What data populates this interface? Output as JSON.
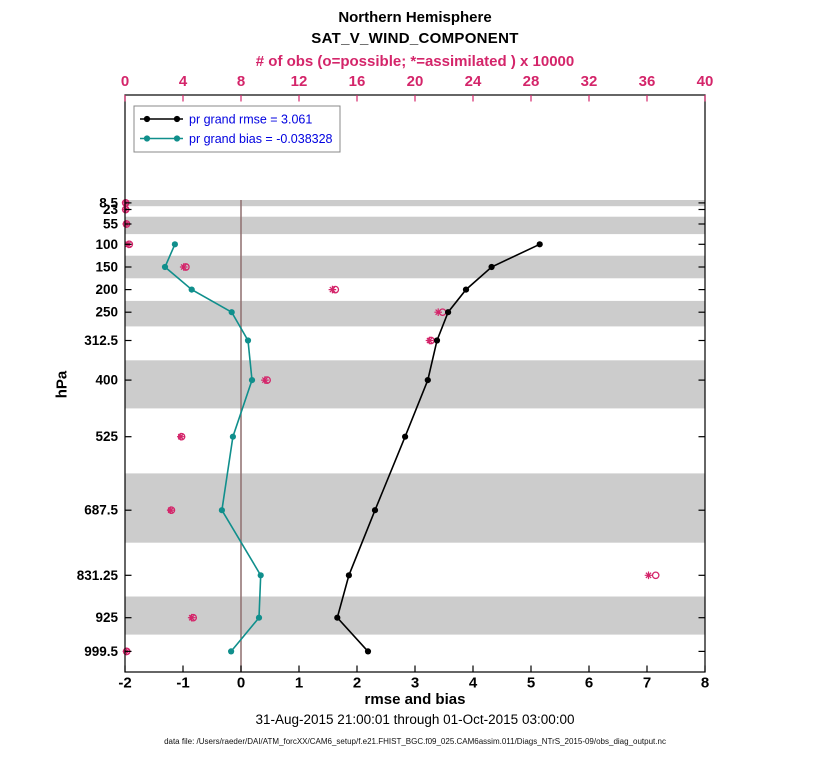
{
  "figure": {
    "title_line1": "Northern Hemisphere",
    "title_line2": "SAT_V_WIND_COMPONENT",
    "top_axis_label": "# of obs (o=possible; *=assimilated ) x 10000",
    "bottom_axis_label": "rmse and bias",
    "y_axis_label": "hPa",
    "timespan": "31-Aug-2015 21:00:01 through 01-Oct-2015 03:00:00",
    "datafile": "data file: /Users/raeder/DAI/ATM_forcXX/CAM6_setup/f.e21.FHIST_BGC.f09_025.CAM6assim.011/Diags_NTrS_2015-09/obs_diag_output.nc"
  },
  "legend": {
    "rmse_label": "pr grand rmse = 3.061",
    "bias_label": "pr grand bias = -0.038328"
  },
  "colors": {
    "rmse": "#000000",
    "bias": "#108f8c",
    "obs": "#d4256a",
    "legend_text": "#0000e0",
    "band": "#cccccc",
    "zero_line": "#8e6f6f",
    "axis": "#000000",
    "background": "#ffffff"
  },
  "chart_data": {
    "type": "line",
    "title": "Northern Hemisphere",
    "subtitle": "SAT_V_WIND_COMPONENT",
    "orientation": "vertical-profile",
    "grid": false,
    "legend_position": "top-left-inside",
    "x_bottom": {
      "label": "rmse and bias",
      "range": [
        -2,
        8
      ],
      "ticks": [
        -2,
        -1,
        0,
        1,
        2,
        3,
        4,
        5,
        6,
        7,
        8
      ]
    },
    "x_top": {
      "label": "# of obs (o=possible; *=assimilated ) x 10000",
      "range": [
        0,
        40
      ],
      "ticks": [
        0,
        4,
        8,
        12,
        16,
        20,
        24,
        28,
        32,
        36,
        40
      ],
      "unit_scale": "x 10000"
    },
    "y_axis": {
      "label": "hPa",
      "levels": [
        8.5,
        23,
        55,
        100,
        150,
        200,
        250,
        312.5,
        400,
        525,
        687.5,
        831.25,
        925,
        999.5
      ],
      "tick_labels": [
        "8.5",
        "23",
        "55",
        "100",
        "150",
        "200",
        "250",
        "312.5",
        "400",
        "525",
        "687.5",
        "831.25",
        "925",
        "999.5"
      ],
      "ylim_top_to_bottom": [
        -230,
        1045
      ]
    },
    "series": [
      {
        "name": "pr grand rmse",
        "grand_value": 3.061,
        "color_key": "rmse",
        "levels": [
          100,
          150,
          200,
          250,
          312.5,
          400,
          525,
          687.5,
          831.25,
          925,
          999.5
        ],
        "values": [
          5.15,
          4.32,
          3.88,
          3.57,
          3.38,
          3.22,
          2.83,
          2.31,
          1.86,
          1.66,
          2.19
        ]
      },
      {
        "name": "pr grand bias",
        "grand_value": -0.038328,
        "color_key": "bias",
        "levels": [
          100,
          150,
          200,
          250,
          312.5,
          400,
          525,
          687.5,
          831.25,
          925,
          999.5
        ],
        "values": [
          -1.14,
          -1.31,
          -0.85,
          -0.16,
          0.12,
          0.19,
          -0.14,
          -0.33,
          0.34,
          0.31,
          -0.17
        ]
      }
    ],
    "obs_counts": {
      "levels": [
        8.5,
        23,
        55,
        100,
        150,
        200,
        250,
        312.5,
        400,
        525,
        687.5,
        831.25,
        925,
        999.5
      ],
      "possible": [
        0.05,
        0.05,
        0.1,
        0.3,
        4.2,
        14.5,
        21.9,
        21.1,
        9.8,
        3.9,
        3.2,
        36.6,
        4.7,
        0.12
      ],
      "assimilated": [
        0.05,
        0.05,
        0.08,
        0.22,
        4.05,
        14.3,
        21.6,
        21.0,
        9.65,
        3.85,
        3.15,
        36.1,
        4.6,
        0.1
      ]
    },
    "gray_bands_pressure": [
      [
        2,
        15.75
      ],
      [
        39,
        77.5
      ],
      [
        125,
        175
      ],
      [
        225,
        281.25
      ],
      [
        356.25,
        462.5
      ],
      [
        606.25,
        759.375
      ],
      [
        878.125,
        962.25
      ]
    ],
    "zero_line_x": 0
  }
}
